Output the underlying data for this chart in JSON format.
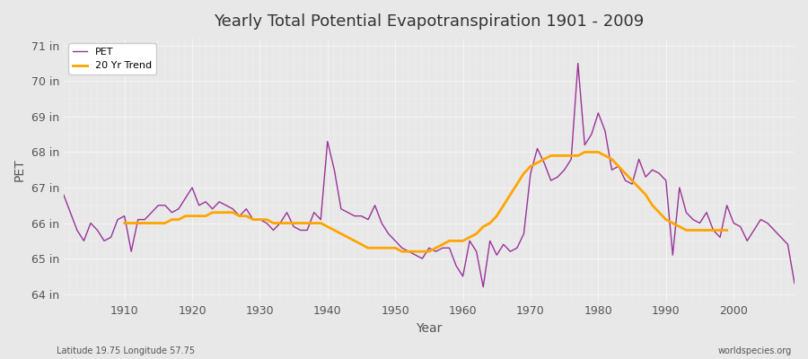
{
  "title": "Yearly Total Potential Evapotranspiration 1901 - 2009",
  "xlabel": "Year",
  "ylabel": "PET",
  "footnote_left": "Latitude 19.75 Longitude 57.75",
  "footnote_right": "worldspecies.org",
  "pet_color": "#993399",
  "trend_color": "#FFA500",
  "background_color": "#e8e8e8",
  "plot_bg_color": "#e8e8e8",
  "ylim": [
    63.8,
    71.2
  ],
  "ytick_labels": [
    "64 in",
    "65 in",
    "66 in",
    "67 in",
    "68 in",
    "69 in",
    "70 in",
    "71 in"
  ],
  "ytick_values": [
    64,
    65,
    66,
    67,
    68,
    69,
    70,
    71
  ],
  "years": [
    1901,
    1902,
    1903,
    1904,
    1905,
    1906,
    1907,
    1908,
    1909,
    1910,
    1911,
    1912,
    1913,
    1914,
    1915,
    1916,
    1917,
    1918,
    1919,
    1920,
    1921,
    1922,
    1923,
    1924,
    1925,
    1926,
    1927,
    1928,
    1929,
    1930,
    1931,
    1932,
    1933,
    1934,
    1935,
    1936,
    1937,
    1938,
    1939,
    1940,
    1941,
    1942,
    1943,
    1944,
    1945,
    1946,
    1947,
    1948,
    1949,
    1950,
    1951,
    1952,
    1953,
    1954,
    1955,
    1956,
    1957,
    1958,
    1959,
    1960,
    1961,
    1962,
    1963,
    1964,
    1965,
    1966,
    1967,
    1968,
    1969,
    1970,
    1971,
    1972,
    1973,
    1974,
    1975,
    1976,
    1977,
    1978,
    1979,
    1980,
    1981,
    1982,
    1983,
    1984,
    1985,
    1986,
    1987,
    1988,
    1989,
    1990,
    1991,
    1992,
    1993,
    1994,
    1995,
    1996,
    1997,
    1998,
    1999,
    2000,
    2001,
    2002,
    2003,
    2004,
    2005,
    2006,
    2007,
    2008,
    2009
  ],
  "pet_values": [
    66.8,
    66.3,
    65.8,
    65.5,
    66.0,
    65.8,
    65.5,
    65.6,
    66.1,
    66.2,
    65.2,
    66.1,
    66.1,
    66.3,
    66.5,
    66.5,
    66.3,
    66.4,
    66.7,
    67.0,
    66.5,
    66.6,
    66.4,
    66.6,
    66.5,
    66.4,
    66.2,
    66.4,
    66.1,
    66.1,
    66.0,
    65.8,
    66.0,
    66.3,
    65.9,
    65.8,
    65.8,
    66.3,
    66.1,
    68.3,
    67.5,
    66.4,
    66.3,
    66.2,
    66.2,
    66.1,
    66.5,
    66.0,
    65.7,
    65.5,
    65.3,
    65.2,
    65.1,
    65.0,
    65.3,
    65.2,
    65.3,
    65.3,
    64.8,
    64.5,
    65.5,
    65.2,
    64.2,
    65.5,
    65.1,
    65.4,
    65.2,
    65.3,
    65.7,
    67.4,
    68.1,
    67.7,
    67.2,
    67.3,
    67.5,
    67.8,
    70.5,
    68.2,
    68.5,
    69.1,
    68.6,
    67.5,
    67.6,
    67.2,
    67.1,
    67.8,
    67.3,
    67.5,
    67.4,
    67.2,
    65.1,
    67.0,
    66.3,
    66.1,
    66.0,
    66.3,
    65.8,
    65.6,
    66.5,
    66.0,
    65.9,
    65.5,
    65.8,
    66.1,
    66.0,
    65.8,
    65.6,
    65.4,
    64.3
  ],
  "trend_values": [
    null,
    null,
    null,
    null,
    null,
    null,
    null,
    null,
    null,
    66.0,
    66.0,
    66.0,
    66.0,
    66.0,
    66.0,
    66.0,
    66.1,
    66.1,
    66.2,
    66.2,
    66.2,
    66.2,
    66.3,
    66.3,
    66.3,
    66.3,
    66.2,
    66.2,
    66.1,
    66.1,
    66.1,
    66.0,
    66.0,
    66.0,
    66.0,
    66.0,
    66.0,
    66.0,
    66.0,
    65.9,
    65.8,
    65.7,
    65.6,
    65.5,
    65.4,
    65.3,
    65.3,
    65.3,
    65.3,
    65.3,
    65.2,
    65.2,
    65.2,
    65.2,
    65.2,
    65.3,
    65.4,
    65.5,
    65.5,
    65.5,
    65.6,
    65.7,
    65.9,
    66.0,
    66.2,
    66.5,
    66.8,
    67.1,
    67.4,
    67.6,
    67.7,
    67.8,
    67.9,
    67.9,
    67.9,
    67.9,
    67.9,
    68.0,
    68.0,
    68.0,
    67.9,
    67.8,
    67.6,
    67.4,
    67.2,
    67.0,
    66.8,
    66.5,
    66.3,
    66.1,
    66.0,
    65.9,
    65.8,
    65.8,
    65.8,
    65.8,
    65.8,
    65.8,
    65.8,
    null,
    null,
    null,
    null,
    null,
    null,
    null,
    null,
    null,
    null
  ]
}
